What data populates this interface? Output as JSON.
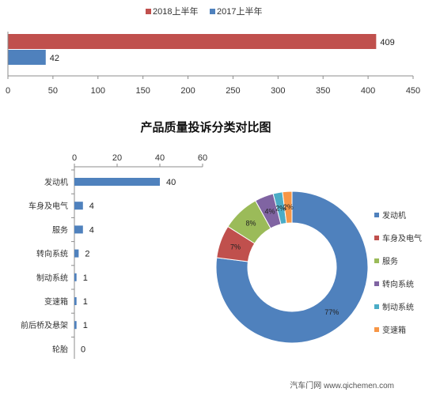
{
  "chart_data": [
    {
      "type": "bar",
      "orientation": "horizontal",
      "series": [
        {
          "name": "2018上半年",
          "values": [
            409
          ],
          "color": "#c0504d"
        },
        {
          "name": "2017上半年",
          "values": [
            42
          ],
          "color": "#4f81bd"
        }
      ],
      "value_labels": [
        "409",
        "42"
      ],
      "xlim": [
        0,
        450
      ],
      "xticks": [
        "0",
        "50",
        "100",
        "150",
        "200",
        "250",
        "300",
        "350",
        "400",
        "450"
      ],
      "legend": "top"
    },
    {
      "type": "bar",
      "orientation": "horizontal",
      "title": "产品质量投诉分类对比图",
      "categories": [
        "发动机",
        "车身及电气",
        "服务",
        "转向系统",
        "制动系统",
        "变速箱",
        "前后桥及悬架",
        "轮胎"
      ],
      "values": [
        40,
        4,
        4,
        2,
        1,
        1,
        1,
        0
      ],
      "value_labels": [
        "40",
        "4",
        "4",
        "2",
        "1",
        "1",
        "1",
        "0"
      ],
      "xlim": [
        0,
        60
      ],
      "xticks": [
        "0",
        "20",
        "40",
        "60"
      ],
      "axis_position": "top",
      "color": "#4f81bd"
    },
    {
      "type": "pie",
      "donut": true,
      "labels": [
        "发动机",
        "车身及电气",
        "服务",
        "转向系统",
        "制动系统",
        "变速箱"
      ],
      "values": [
        77,
        7,
        8,
        4,
        2,
        2
      ],
      "value_labels": [
        "77%",
        "7%",
        "8%",
        "4%",
        "2%",
        "2%"
      ],
      "colors": [
        "#4f81bd",
        "#c0504d",
        "#9bbb59",
        "#8064a2",
        "#4bacc6",
        "#f79646"
      ],
      "legend": "right"
    }
  ],
  "watermark": "汽车门网 www.qichemen.com"
}
